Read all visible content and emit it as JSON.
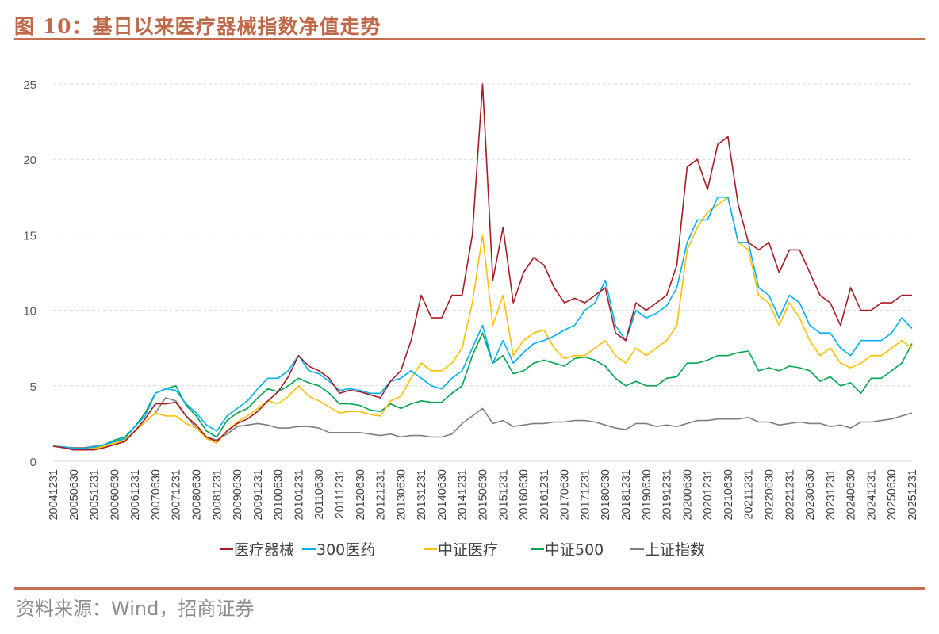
{
  "title": "图 10：基日以来医疗器械指数净值走势",
  "source": "资料来源：Wind，招商证券",
  "chart_data": {
    "type": "line",
    "title": "",
    "xlabel": "",
    "ylabel": "",
    "ylim": [
      0,
      25
    ],
    "yticks": [
      0,
      5,
      10,
      15,
      20,
      25
    ],
    "grid": "horizontal dashed",
    "legend_position": "bottom",
    "xtick_labels": [
      "20041231",
      "20050630",
      "20051231",
      "20060630",
      "20061231",
      "20070630",
      "20071231",
      "20080630",
      "20081231",
      "20090630",
      "20091231",
      "20100630",
      "20101231",
      "20110630",
      "20111231",
      "20120630",
      "20121231",
      "20130630",
      "20131231",
      "20140630",
      "20141231",
      "20150630",
      "20151231",
      "20160630",
      "20161231",
      "20170630",
      "20171231",
      "20180630",
      "20181231",
      "20190630",
      "20191231",
      "20200630",
      "20201231",
      "20210630",
      "20211231",
      "20220630",
      "20221231",
      "20230630",
      "20231231",
      "20240630",
      "20241231",
      "20250630",
      "20251231"
    ],
    "x": [
      "2004-12",
      "2005-03",
      "2005-06",
      "2005-09",
      "2005-12",
      "2006-03",
      "2006-06",
      "2006-09",
      "2006-12",
      "2007-03",
      "2007-06",
      "2007-09",
      "2007-12",
      "2008-03",
      "2008-06",
      "2008-09",
      "2008-12",
      "2009-03",
      "2009-06",
      "2009-09",
      "2009-12",
      "2010-03",
      "2010-06",
      "2010-09",
      "2010-12",
      "2011-03",
      "2011-06",
      "2011-09",
      "2011-12",
      "2012-03",
      "2012-06",
      "2012-09",
      "2012-12",
      "2013-03",
      "2013-06",
      "2013-09",
      "2013-12",
      "2014-03",
      "2014-06",
      "2014-09",
      "2014-12",
      "2015-03",
      "2015-06",
      "2015-09",
      "2015-12",
      "2016-03",
      "2016-06",
      "2016-09",
      "2016-12",
      "2017-03",
      "2017-06",
      "2017-09",
      "2017-12",
      "2018-03",
      "2018-06",
      "2018-09",
      "2018-12",
      "2019-03",
      "2019-06",
      "2019-09",
      "2019-12",
      "2020-03",
      "2020-06",
      "2020-09",
      "2020-12",
      "2021-03",
      "2021-06",
      "2021-09",
      "2021-12",
      "2022-03",
      "2022-06",
      "2022-09",
      "2022-12",
      "2023-03",
      "2023-06",
      "2023-09",
      "2023-12",
      "2024-03",
      "2024-06",
      "2024-09",
      "2024-12",
      "2025-03",
      "2025-06",
      "2025-09",
      "2025-12"
    ],
    "series": [
      {
        "name": "医疗器械",
        "color": "#A51C24",
        "values": [
          1.0,
          0.9,
          0.75,
          0.75,
          0.75,
          0.9,
          1.1,
          1.3,
          2.0,
          2.8,
          3.8,
          3.8,
          3.9,
          3.0,
          2.4,
          1.6,
          1.3,
          2.0,
          2.5,
          2.8,
          3.3,
          4.0,
          4.6,
          5.6,
          7.0,
          6.3,
          6.0,
          5.5,
          4.5,
          4.7,
          4.6,
          4.4,
          4.2,
          5.3,
          6.0,
          8.0,
          11.0,
          9.5,
          9.5,
          11.0,
          11.0,
          15.0,
          25.0,
          12.0,
          15.5,
          10.5,
          12.5,
          13.5,
          13.0,
          11.5,
          10.5,
          10.8,
          10.5,
          11.0,
          11.5,
          8.5,
          8.0,
          10.5,
          10.0,
          10.5,
          11.0,
          13.0,
          19.5,
          20.0,
          18.0,
          21.0,
          21.5,
          17.0,
          14.5,
          14.0,
          14.5,
          12.5,
          14.0,
          14.0,
          12.5,
          11.0,
          10.5,
          9.0,
          11.5,
          10.0,
          10.0,
          10.5,
          10.5,
          11.0,
          11.0
        ]
      },
      {
        "name": "300医药",
        "color": "#00B0F0",
        "values": [
          1.0,
          0.95,
          0.85,
          0.85,
          0.95,
          1.1,
          1.3,
          1.5,
          2.3,
          3.0,
          4.5,
          4.8,
          4.7,
          3.8,
          3.2,
          2.4,
          2.0,
          3.0,
          3.5,
          4.0,
          4.8,
          5.5,
          5.5,
          6.0,
          7.0,
          6.0,
          5.8,
          5.3,
          4.7,
          4.8,
          4.7,
          4.5,
          4.5,
          5.3,
          5.5,
          6.0,
          5.5,
          5.0,
          4.8,
          5.5,
          6.0,
          7.5,
          9.0,
          6.5,
          8.0,
          6.5,
          7.2,
          7.8,
          8.0,
          8.3,
          8.7,
          9.0,
          10.0,
          10.5,
          12.0,
          9.0,
          8.0,
          10.0,
          9.5,
          9.8,
          10.3,
          11.5,
          14.5,
          16.0,
          16.0,
          17.5,
          17.5,
          14.5,
          14.5,
          11.5,
          11.0,
          9.5,
          11.0,
          10.5,
          9.0,
          8.5,
          8.5,
          7.5,
          7.0,
          8.0,
          8.0,
          8.0,
          8.5,
          9.5,
          8.8
        ]
      },
      {
        "name": "中证医疗",
        "color": "#FFC000",
        "values": [
          1.0,
          0.9,
          0.8,
          0.8,
          0.85,
          1.0,
          1.2,
          1.4,
          2.0,
          2.6,
          3.2,
          3.0,
          3.0,
          2.5,
          2.2,
          1.5,
          1.2,
          2.0,
          2.6,
          3.0,
          3.5,
          4.0,
          3.8,
          4.3,
          5.0,
          4.3,
          4.0,
          3.6,
          3.2,
          3.3,
          3.3,
          3.1,
          3.0,
          4.0,
          4.3,
          5.5,
          6.5,
          6.0,
          6.0,
          6.5,
          7.5,
          10.5,
          15.0,
          9.0,
          11.0,
          7.0,
          8.0,
          8.5,
          8.7,
          7.5,
          6.8,
          7.0,
          7.0,
          7.5,
          8.0,
          7.0,
          6.5,
          7.5,
          7.0,
          7.5,
          8.0,
          9.0,
          14.0,
          15.5,
          16.5,
          17.0,
          17.5,
          14.5,
          14.0,
          11.0,
          10.5,
          9.0,
          10.5,
          9.5,
          8.0,
          7.0,
          7.5,
          6.5,
          6.2,
          6.5,
          7.0,
          7.0,
          7.5,
          8.0,
          7.5
        ]
      },
      {
        "name": "中证500",
        "color": "#00A650",
        "values": [
          1.0,
          0.95,
          0.85,
          0.85,
          0.9,
          1.1,
          1.4,
          1.6,
          2.3,
          3.2,
          4.5,
          4.8,
          5.0,
          3.7,
          3.0,
          2.0,
          1.6,
          2.7,
          3.2,
          3.5,
          4.2,
          4.8,
          4.6,
          5.0,
          5.5,
          5.2,
          5.0,
          4.5,
          3.8,
          3.8,
          3.7,
          3.4,
          3.3,
          3.8,
          3.5,
          3.8,
          4.0,
          3.9,
          3.9,
          4.5,
          5.0,
          7.0,
          8.5,
          6.5,
          7.0,
          5.8,
          6.0,
          6.5,
          6.7,
          6.5,
          6.3,
          6.8,
          6.9,
          6.7,
          6.3,
          5.5,
          5.0,
          5.3,
          5.0,
          5.0,
          5.5,
          5.6,
          6.5,
          6.5,
          6.7,
          7.0,
          7.0,
          7.2,
          7.3,
          6.0,
          6.2,
          6.0,
          6.3,
          6.2,
          6.0,
          5.3,
          5.6,
          5.0,
          5.2,
          4.5,
          5.5,
          5.5,
          6.0,
          6.5,
          7.8
        ]
      },
      {
        "name": "上证指数",
        "color": "#7F7F7F",
        "values": [
          1.0,
          0.95,
          0.9,
          0.9,
          1.0,
          1.1,
          1.3,
          1.4,
          2.0,
          2.6,
          3.2,
          4.2,
          4.0,
          3.0,
          2.2,
          1.6,
          1.4,
          1.8,
          2.3,
          2.4,
          2.5,
          2.4,
          2.2,
          2.2,
          2.3,
          2.3,
          2.2,
          1.9,
          1.9,
          1.9,
          1.9,
          1.8,
          1.7,
          1.8,
          1.6,
          1.7,
          1.7,
          1.6,
          1.6,
          1.8,
          2.5,
          3.0,
          3.5,
          2.5,
          2.7,
          2.3,
          2.4,
          2.5,
          2.5,
          2.6,
          2.6,
          2.7,
          2.7,
          2.6,
          2.4,
          2.2,
          2.1,
          2.5,
          2.5,
          2.3,
          2.4,
          2.3,
          2.5,
          2.7,
          2.7,
          2.8,
          2.8,
          2.8,
          2.9,
          2.6,
          2.6,
          2.4,
          2.5,
          2.6,
          2.5,
          2.5,
          2.3,
          2.4,
          2.2,
          2.6,
          2.6,
          2.7,
          2.8,
          3.0,
          3.2
        ]
      }
    ]
  }
}
